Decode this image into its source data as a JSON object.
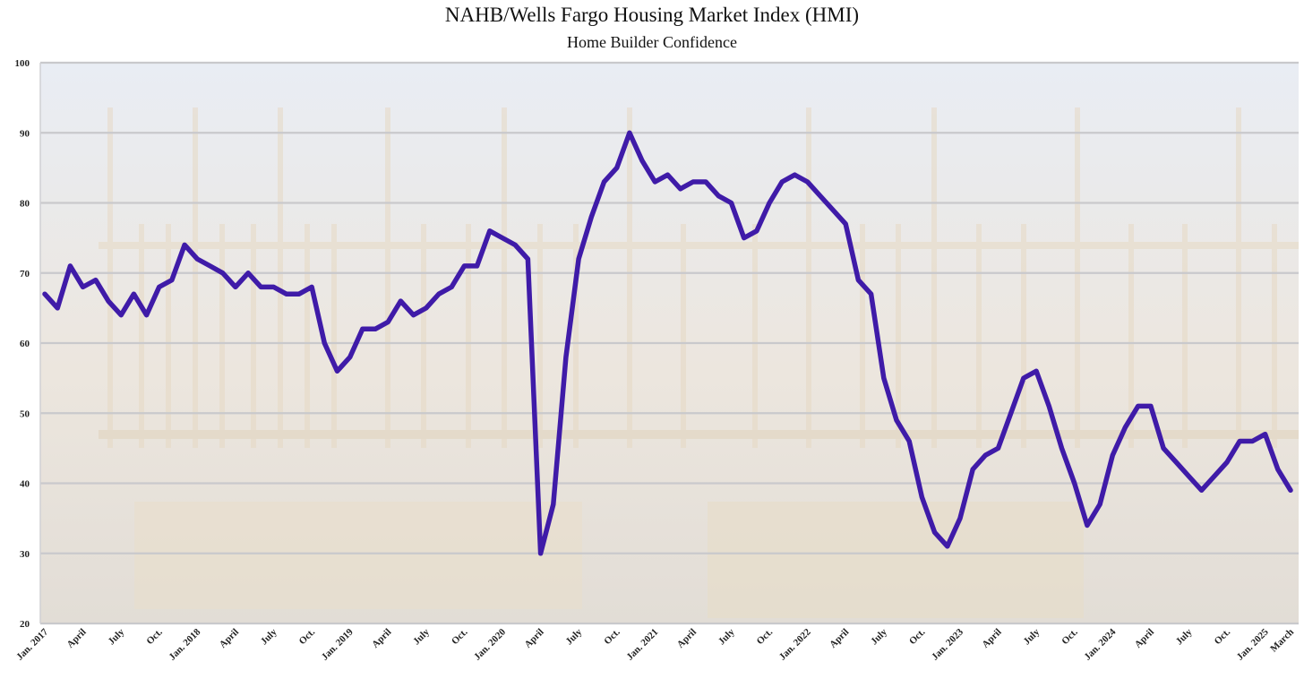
{
  "chart_data": {
    "type": "line",
    "title": "NAHB/Wells Fargo Housing Market Index (HMI)",
    "subtitle": "Home Builder Confidence",
    "xlabel": "",
    "ylabel": "",
    "ylim": [
      20,
      100
    ],
    "yticks": [
      20,
      30,
      40,
      50,
      60,
      70,
      80,
      90,
      100
    ],
    "grid": true,
    "line_color": "#3f1ba8",
    "x_tick_labels": [
      {
        "index": 0,
        "label": "Jan. 2017"
      },
      {
        "index": 3,
        "label": "April"
      },
      {
        "index": 6,
        "label": "July"
      },
      {
        "index": 9,
        "label": "Oct."
      },
      {
        "index": 12,
        "label": "Jan. 2018"
      },
      {
        "index": 15,
        "label": "April"
      },
      {
        "index": 18,
        "label": "July"
      },
      {
        "index": 21,
        "label": "Oct."
      },
      {
        "index": 24,
        "label": "Jan. 2019"
      },
      {
        "index": 27,
        "label": "April"
      },
      {
        "index": 30,
        "label": "July"
      },
      {
        "index": 33,
        "label": "Oct."
      },
      {
        "index": 36,
        "label": "Jan. 2020"
      },
      {
        "index": 39,
        "label": "April"
      },
      {
        "index": 42,
        "label": "July"
      },
      {
        "index": 45,
        "label": "Oct."
      },
      {
        "index": 48,
        "label": "Jan. 2021"
      },
      {
        "index": 51,
        "label": "April"
      },
      {
        "index": 54,
        "label": "July"
      },
      {
        "index": 57,
        "label": "Oct."
      },
      {
        "index": 60,
        "label": "Jan. 2022"
      },
      {
        "index": 63,
        "label": "April"
      },
      {
        "index": 66,
        "label": "July"
      },
      {
        "index": 69,
        "label": "Oct."
      },
      {
        "index": 72,
        "label": "Jan. 2023"
      },
      {
        "index": 75,
        "label": "April"
      },
      {
        "index": 78,
        "label": "July"
      },
      {
        "index": 81,
        "label": "Oct."
      },
      {
        "index": 84,
        "label": "Jan. 2024"
      },
      {
        "index": 87,
        "label": "April"
      },
      {
        "index": 90,
        "label": "July"
      },
      {
        "index": 93,
        "label": "Oct."
      },
      {
        "index": 96,
        "label": "Jan. 2025"
      },
      {
        "index": 98,
        "label": "March"
      }
    ],
    "series": [
      {
        "values": [
          67,
          65,
          71,
          68,
          69,
          66,
          64,
          67,
          64,
          68,
          69,
          74,
          72,
          71,
          70,
          68,
          70,
          68,
          68,
          67,
          67,
          68,
          60,
          56,
          58,
          62,
          62,
          63,
          66,
          64,
          65,
          67,
          68,
          71,
          71,
          76,
          75,
          74,
          72,
          30,
          37,
          58,
          72,
          78,
          83,
          85,
          90,
          86,
          83,
          84,
          82,
          83,
          83,
          81,
          80,
          75,
          76,
          80,
          83,
          84,
          83,
          81,
          79,
          77,
          69,
          67,
          55,
          49,
          46,
          38,
          33,
          31,
          35,
          42,
          44,
          45,
          50,
          55,
          56,
          51,
          45,
          40,
          34,
          37,
          44,
          48,
          51,
          51,
          45,
          43,
          41,
          39,
          41,
          43,
          46,
          46,
          47,
          42,
          39
        ]
      }
    ]
  }
}
